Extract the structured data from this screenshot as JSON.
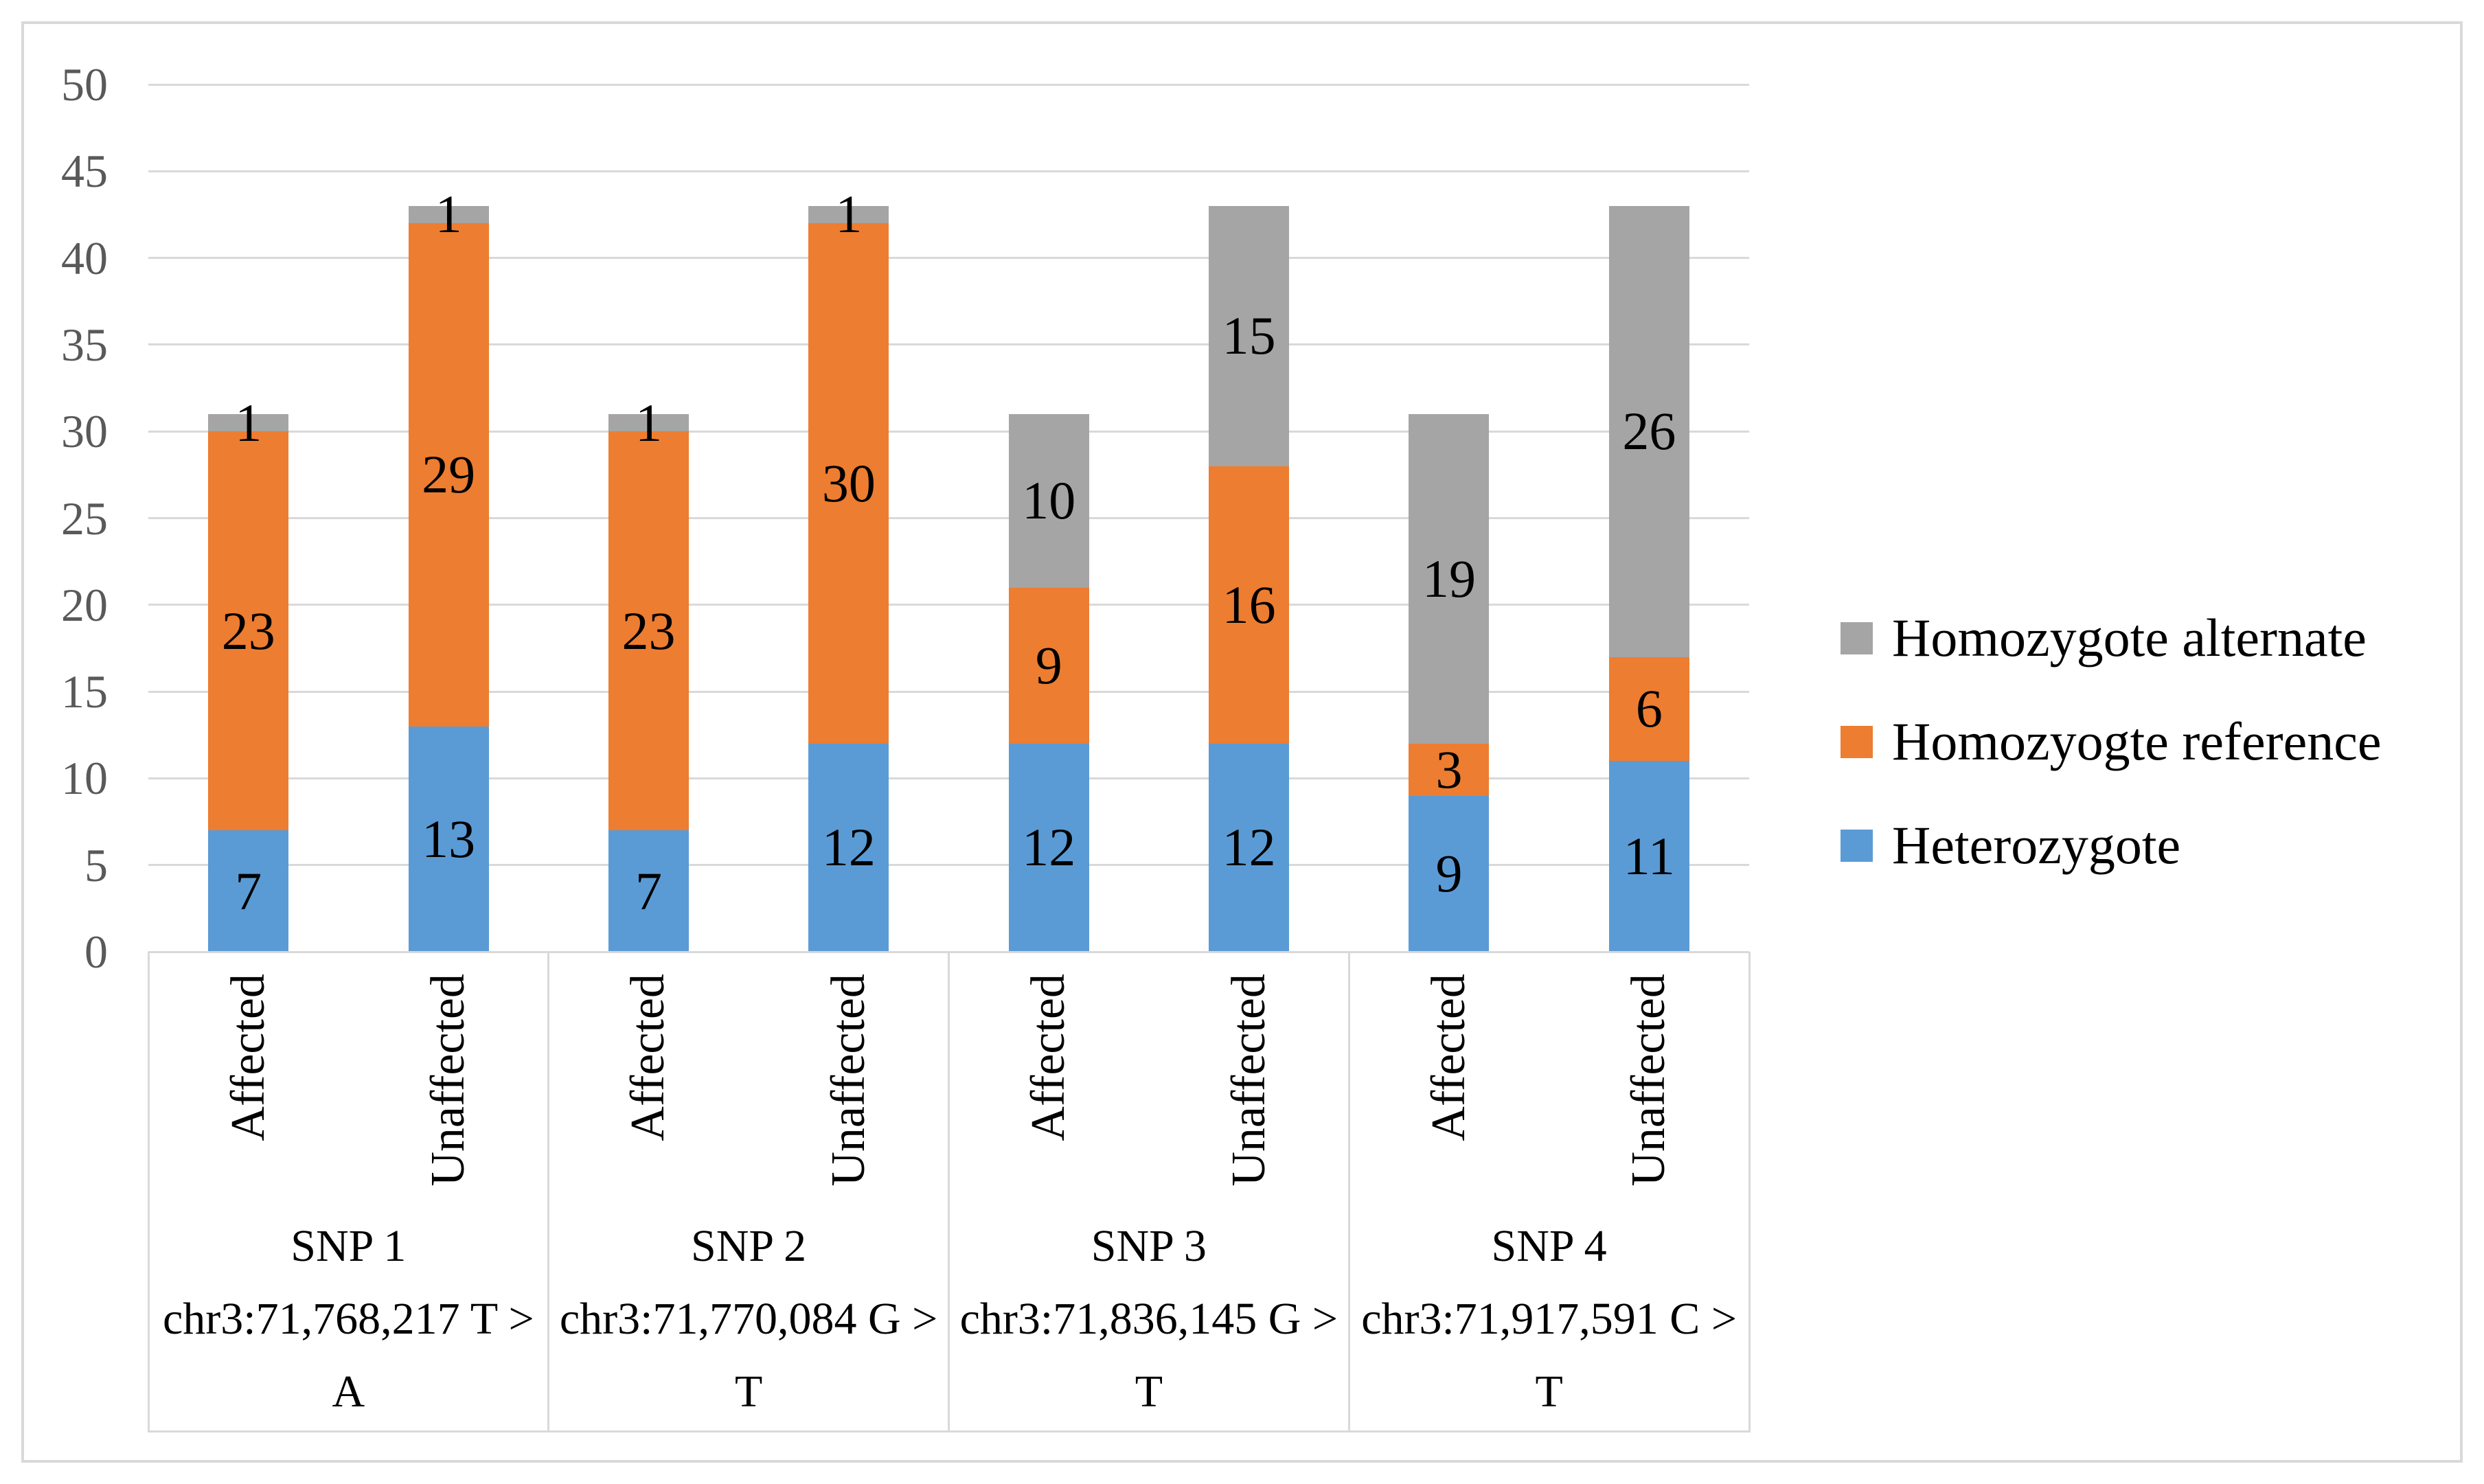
{
  "chart_data": {
    "type": "bar",
    "stacked": true,
    "title": "",
    "xlabel": "",
    "ylabel": "",
    "ylim": [
      0,
      50
    ],
    "ytick_step": 5,
    "ytick_labels": [
      "0",
      "5",
      "10",
      "15",
      "20",
      "25",
      "30",
      "35",
      "40",
      "45",
      "50"
    ],
    "grid": true,
    "legend_position": "right",
    "series_order_bottom_to_top": [
      "Heterozygote",
      "Homozyogte reference",
      "Homozygote alternate"
    ],
    "series": [
      {
        "name": "Heterozygote",
        "color": "#5B9BD5",
        "values": [
          7,
          13,
          7,
          12,
          12,
          12,
          9,
          11
        ]
      },
      {
        "name": "Homozyogte reference",
        "color": "#ED7D31",
        "values": [
          23,
          29,
          23,
          30,
          9,
          16,
          3,
          6
        ]
      },
      {
        "name": "Homozygote alternate",
        "color": "#A5A5A5",
        "values": [
          1,
          1,
          1,
          1,
          10,
          15,
          19,
          26
        ]
      }
    ],
    "bar_categories": [
      "Affected",
      "Unaffected",
      "Affected",
      "Unaffected",
      "Affected",
      "Unaffected",
      "Affected",
      "Unaffected"
    ],
    "groups": [
      {
        "label_lines": [
          "SNP 1",
          "chr3:71,768,217 T >",
          "A"
        ],
        "bars": [
          {
            "label": "Affected",
            "heterozygote": 7,
            "homozygote_reference": 23,
            "homozygote_alternate": 1
          },
          {
            "label": "Unaffected",
            "heterozygote": 13,
            "homozygote_reference": 29,
            "homozygote_alternate": 1
          }
        ]
      },
      {
        "label_lines": [
          "SNP 2",
          "chr3:71,770,084 G >",
          "T"
        ],
        "bars": [
          {
            "label": "Affected",
            "heterozygote": 7,
            "homozygote_reference": 23,
            "homozygote_alternate": 1
          },
          {
            "label": "Unaffected",
            "heterozygote": 12,
            "homozygote_reference": 30,
            "homozygote_alternate": 1
          }
        ]
      },
      {
        "label_lines": [
          "SNP 3",
          "chr3:71,836,145 G >",
          "T"
        ],
        "bars": [
          {
            "label": "Affected",
            "heterozygote": 12,
            "homozygote_reference": 9,
            "homozygote_alternate": 10
          },
          {
            "label": "Unaffected",
            "heterozygote": 12,
            "homozygote_reference": 16,
            "homozygote_alternate": 15
          }
        ]
      },
      {
        "label_lines": [
          "SNP 4",
          "chr3:71,917,591 C >",
          "T"
        ],
        "bars": [
          {
            "label": "Affected",
            "heterozygote": 9,
            "homozygote_reference": 3,
            "homozygote_alternate": 19
          },
          {
            "label": "Unaffected",
            "heterozygote": 11,
            "homozygote_reference": 6,
            "homozygote_alternate": 26
          }
        ]
      }
    ]
  },
  "legend": {
    "items": [
      {
        "label": "Homozygote alternate",
        "color": "#A5A5A5"
      },
      {
        "label": "Homozyogte reference",
        "color": "#ED7D31"
      },
      {
        "label": "Heterozygote",
        "color": "#5B9BD5"
      }
    ]
  },
  "colors": {
    "gridline": "#d9d9d9",
    "axis_box": "#d9d9d9",
    "tick_label": "#595959",
    "text": "#000000",
    "background": "#ffffff"
  }
}
